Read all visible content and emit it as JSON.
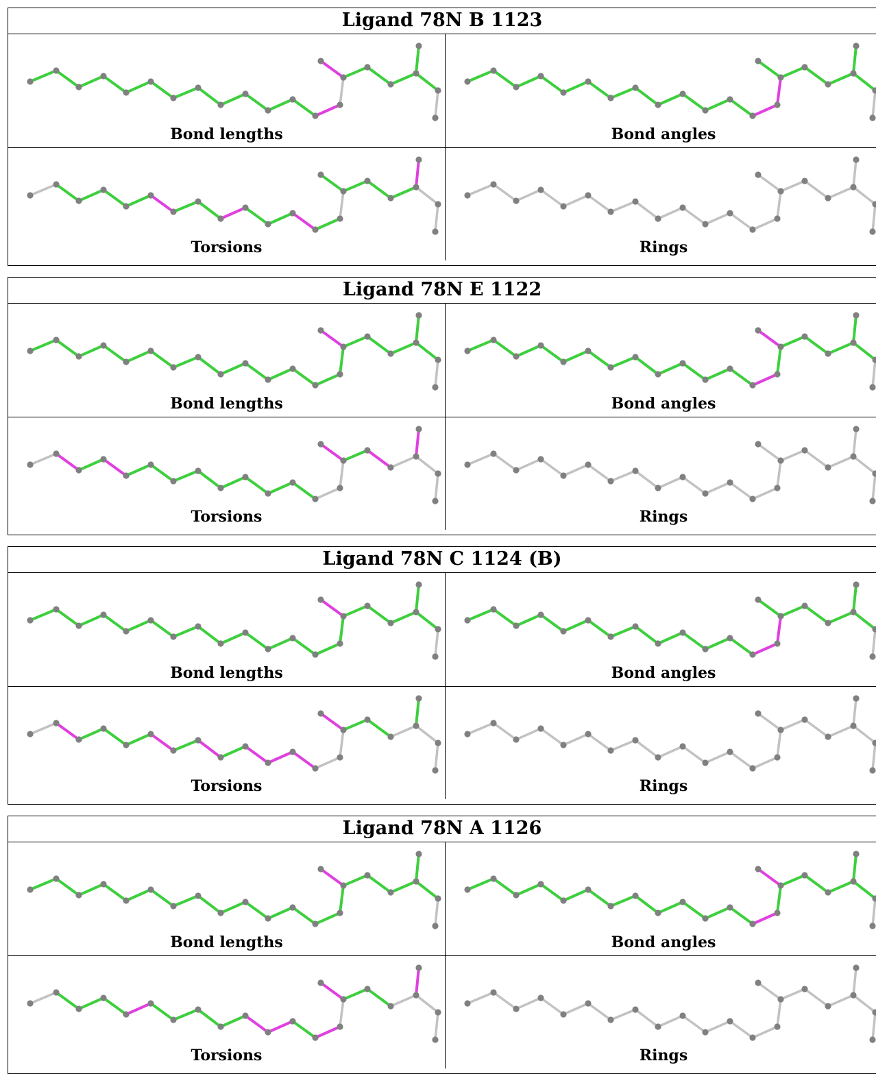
{
  "colors": {
    "ok": "#3ecf3e",
    "outlier": "#e040e0",
    "neutral": "#c2c2c2",
    "atom": "#808080"
  },
  "panel_labels": [
    "Bond lengths",
    "Bond angles",
    "Torsions",
    "Rings"
  ],
  "ligands": [
    {
      "title": "Ligand 78N B 1123",
      "panels": [
        {
          "label": "Bond lengths",
          "bonds": [
            "g",
            "g",
            "g",
            "g",
            "g",
            "g",
            "g",
            "g",
            "g",
            "g",
            "g",
            "g",
            "m",
            "n",
            "m",
            "g",
            "g",
            "g",
            "g",
            "g"
          ]
        },
        {
          "label": "Bond angles",
          "bonds": [
            "g",
            "g",
            "g",
            "g",
            "g",
            "g",
            "g",
            "g",
            "g",
            "g",
            "g",
            "g",
            "m",
            "m",
            "g",
            "g",
            "g",
            "g",
            "g",
            "g"
          ]
        },
        {
          "label": "Torsions",
          "bonds": [
            "n",
            "g",
            "g",
            "g",
            "g",
            "m",
            "g",
            "g",
            "m",
            "g",
            "g",
            "m",
            "g",
            "n",
            "g",
            "g",
            "g",
            "g",
            "m",
            "n"
          ]
        },
        {
          "label": "Rings",
          "bonds": [
            "n",
            "n",
            "n",
            "n",
            "n",
            "n",
            "n",
            "n",
            "n",
            "n",
            "n",
            "n",
            "n",
            "n",
            "n",
            "n",
            "n",
            "n",
            "n",
            "n"
          ]
        }
      ]
    },
    {
      "title": "Ligand 78N E 1122",
      "panels": [
        {
          "label": "Bond lengths",
          "bonds": [
            "g",
            "g",
            "g",
            "g",
            "g",
            "g",
            "g",
            "g",
            "g",
            "g",
            "g",
            "g",
            "g",
            "g",
            "m",
            "g",
            "g",
            "g",
            "g",
            "g"
          ]
        },
        {
          "label": "Bond angles",
          "bonds": [
            "g",
            "g",
            "g",
            "g",
            "g",
            "g",
            "g",
            "g",
            "g",
            "g",
            "g",
            "g",
            "m",
            "g",
            "m",
            "g",
            "g",
            "g",
            "g",
            "g"
          ]
        },
        {
          "label": "Torsions",
          "bonds": [
            "n",
            "m",
            "g",
            "m",
            "g",
            "g",
            "g",
            "g",
            "g",
            "g",
            "g",
            "g",
            "n",
            "n",
            "m",
            "g",
            "m",
            "n",
            "m",
            "n"
          ]
        },
        {
          "label": "Rings",
          "bonds": [
            "n",
            "n",
            "n",
            "n",
            "n",
            "n",
            "n",
            "n",
            "n",
            "n",
            "n",
            "n",
            "n",
            "n",
            "n",
            "n",
            "n",
            "n",
            "n",
            "n"
          ]
        }
      ]
    },
    {
      "title": "Ligand 78N C 1124 (B)",
      "panels": [
        {
          "label": "Bond lengths",
          "bonds": [
            "g",
            "g",
            "g",
            "g",
            "g",
            "g",
            "g",
            "g",
            "g",
            "g",
            "g",
            "g",
            "g",
            "g",
            "m",
            "g",
            "g",
            "g",
            "g",
            "g"
          ]
        },
        {
          "label": "Bond angles",
          "bonds": [
            "g",
            "g",
            "g",
            "g",
            "g",
            "g",
            "g",
            "g",
            "g",
            "g",
            "g",
            "g",
            "m",
            "m",
            "g",
            "g",
            "g",
            "g",
            "g",
            "g"
          ]
        },
        {
          "label": "Torsions",
          "bonds": [
            "n",
            "m",
            "g",
            "g",
            "g",
            "m",
            "g",
            "m",
            "g",
            "m",
            "m",
            "m",
            "n",
            "n",
            "m",
            "g",
            "g",
            "n",
            "g",
            "n"
          ]
        },
        {
          "label": "Rings",
          "bonds": [
            "n",
            "n",
            "n",
            "n",
            "n",
            "n",
            "n",
            "n",
            "n",
            "n",
            "n",
            "n",
            "n",
            "n",
            "n",
            "n",
            "n",
            "n",
            "n",
            "n"
          ]
        }
      ]
    },
    {
      "title": "Ligand 78N A 1126",
      "panels": [
        {
          "label": "Bond lengths",
          "bonds": [
            "g",
            "g",
            "g",
            "g",
            "g",
            "g",
            "g",
            "g",
            "g",
            "g",
            "g",
            "g",
            "g",
            "g",
            "m",
            "g",
            "g",
            "g",
            "g",
            "g"
          ]
        },
        {
          "label": "Bond angles",
          "bonds": [
            "g",
            "g",
            "g",
            "g",
            "g",
            "g",
            "g",
            "g",
            "g",
            "g",
            "g",
            "g",
            "m",
            "g",
            "m",
            "g",
            "g",
            "g",
            "g",
            "g"
          ]
        },
        {
          "label": "Torsions",
          "bonds": [
            "n",
            "g",
            "g",
            "g",
            "m",
            "g",
            "g",
            "g",
            "g",
            "m",
            "m",
            "g",
            "m",
            "n",
            "m",
            "g",
            "g",
            "n",
            "m",
            "n"
          ]
        },
        {
          "label": "Rings",
          "bonds": [
            "n",
            "n",
            "n",
            "n",
            "n",
            "n",
            "n",
            "n",
            "n",
            "n",
            "n",
            "n",
            "n",
            "n",
            "n",
            "n",
            "n",
            "n",
            "n",
            "n"
          ]
        }
      ]
    }
  ]
}
